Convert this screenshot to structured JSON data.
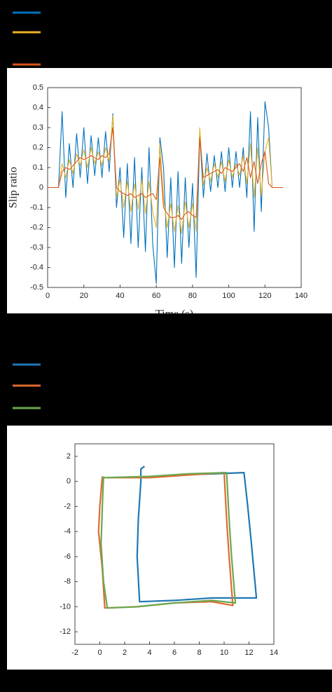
{
  "chart_data": [
    {
      "type": "line",
      "y_label": "Slip ratio",
      "x_label": "Time (s)",
      "x": [
        0,
        2,
        4,
        6,
        8,
        10,
        12,
        14,
        16,
        18,
        20,
        22,
        24,
        26,
        28,
        30,
        32,
        34,
        36,
        38,
        40,
        42,
        44,
        46,
        48,
        50,
        52,
        54,
        56,
        58,
        60,
        62,
        64,
        66,
        68,
        70,
        72,
        74,
        76,
        78,
        80,
        82,
        84,
        86,
        88,
        90,
        92,
        94,
        96,
        98,
        100,
        102,
        104,
        106,
        108,
        110,
        112,
        114,
        116,
        118,
        120,
        122,
        124,
        126,
        128,
        130
      ],
      "series": [
        {
          "color": "#0072bd",
          "values": [
            0,
            0,
            0,
            0,
            0.38,
            -0.05,
            0.22,
            0.0,
            0.27,
            0.05,
            0.3,
            0.02,
            0.26,
            0.06,
            0.25,
            0.05,
            0.28,
            0.08,
            0.37,
            -0.1,
            0.1,
            -0.25,
            0.12,
            -0.28,
            0.15,
            -0.3,
            0.1,
            -0.32,
            0.2,
            -0.28,
            -0.48,
            0.25,
            0.1,
            -0.35,
            0.05,
            -0.4,
            0.08,
            -0.38,
            0.05,
            -0.3,
            0.02,
            -0.45,
            0.27,
            -0.05,
            0.17,
            -0.02,
            0.16,
            0.0,
            0.18,
            -0.02,
            0.2,
            0.0,
            0.18,
            0.0,
            0.2,
            -0.05,
            0.38,
            -0.22,
            0.35,
            -0.12,
            0.43,
            0.3,
            0,
            0,
            0,
            0
          ]
        },
        {
          "color": "#edb120",
          "values": [
            0,
            0,
            0,
            0,
            0.12,
            0.05,
            0.14,
            0.07,
            0.17,
            0.11,
            0.19,
            0.1,
            0.2,
            0.12,
            0.18,
            0.11,
            0.2,
            0.13,
            0.36,
            -0.05,
            0.04,
            -0.1,
            0.03,
            -0.12,
            0.02,
            -0.11,
            0.04,
            -0.13,
            0.03,
            -0.12,
            -0.2,
            0.22,
            -0.05,
            -0.2,
            -0.08,
            -0.22,
            -0.09,
            -0.23,
            -0.07,
            -0.2,
            -0.08,
            -0.22,
            0.3,
            0.01,
            0.1,
            0.03,
            0.12,
            0.05,
            0.13,
            0.03,
            0.14,
            0.05,
            0.12,
            0.06,
            0.16,
            0.02,
            0.22,
            -0.05,
            0.2,
            -0.04,
            0.18,
            0.25,
            0,
            0,
            0,
            0
          ]
        },
        {
          "color": "#d95319",
          "values": [
            0,
            0,
            0,
            0,
            0.08,
            0.1,
            0.09,
            0.11,
            0.13,
            0.15,
            0.14,
            0.15,
            0.16,
            0.15,
            0.14,
            0.16,
            0.15,
            0.17,
            0.3,
            0.0,
            -0.02,
            -0.03,
            -0.04,
            -0.03,
            -0.05,
            -0.04,
            -0.03,
            -0.05,
            -0.04,
            -0.03,
            -0.06,
            0.15,
            -0.1,
            -0.13,
            -0.15,
            -0.15,
            -0.14,
            -0.16,
            -0.13,
            -0.12,
            -0.14,
            -0.15,
            0.25,
            0.05,
            0.06,
            0.07,
            0.08,
            0.09,
            0.07,
            0.1,
            0.09,
            0.08,
            0.1,
            0.12,
            0.08,
            0.15,
            0.05,
            0.13,
            0.02,
            0.12,
            0.18,
            0.02,
            0,
            0,
            0,
            0
          ]
        }
      ],
      "xlim": [
        0,
        140
      ],
      "xticks": [
        0,
        20,
        40,
        60,
        80,
        100,
        120,
        140
      ],
      "ylim": [
        -0.5,
        0.5
      ],
      "yticks": [
        -0.5,
        -0.4,
        -0.3,
        -0.2,
        -0.1,
        0,
        0.1,
        0.2,
        0.3,
        0.4,
        0.5
      ],
      "grid": false
    },
    {
      "type": "line",
      "series": [
        {
          "color": "#1f77b4",
          "x": [
            3.6,
            3.3,
            3.3,
            3.1,
            3.0,
            3.2,
            6,
            9,
            12.6,
            12.2,
            11.9,
            11.6,
            9,
            6,
            3.5
          ],
          "values": [
            1.2,
            1.0,
            0,
            -3,
            -6,
            -9.6,
            -9.5,
            -9.3,
            -9.3,
            -5,
            -2,
            0.7,
            0.6,
            0.5,
            0.3
          ]
        },
        {
          "color": "#e06a30",
          "x": [
            0.2,
            0,
            -0.1,
            0.2,
            0.4,
            3,
            6,
            9,
            10.7,
            10.4,
            10.2,
            10,
            7,
            4,
            0.5
          ],
          "values": [
            0.4,
            -2,
            -4,
            -7,
            -10.1,
            -10.0,
            -9.7,
            -9.6,
            -9.9,
            -6,
            -3,
            0.7,
            0.5,
            0.3,
            0.3
          ]
        },
        {
          "color": "#6aa84f",
          "x": [
            0.3,
            0.2,
            0.1,
            0.3,
            0.6,
            3,
            6,
            9,
            10.9,
            10.6,
            10.4,
            10.2,
            7,
            4,
            0.2
          ],
          "values": [
            0.4,
            -2,
            -5,
            -8,
            -10.1,
            -10.0,
            -9.7,
            -9.5,
            -9.7,
            -6,
            -3,
            0.7,
            0.6,
            0.4,
            0.3
          ]
        }
      ],
      "xlim": [
        -2,
        14
      ],
      "xticks": [
        -2,
        0,
        2,
        4,
        6,
        8,
        10,
        12,
        14
      ],
      "ylim": [
        -13,
        3
      ],
      "yticks": [
        -12,
        -10,
        -8,
        -6,
        -4,
        -2,
        0,
        2
      ],
      "grid": false
    }
  ]
}
